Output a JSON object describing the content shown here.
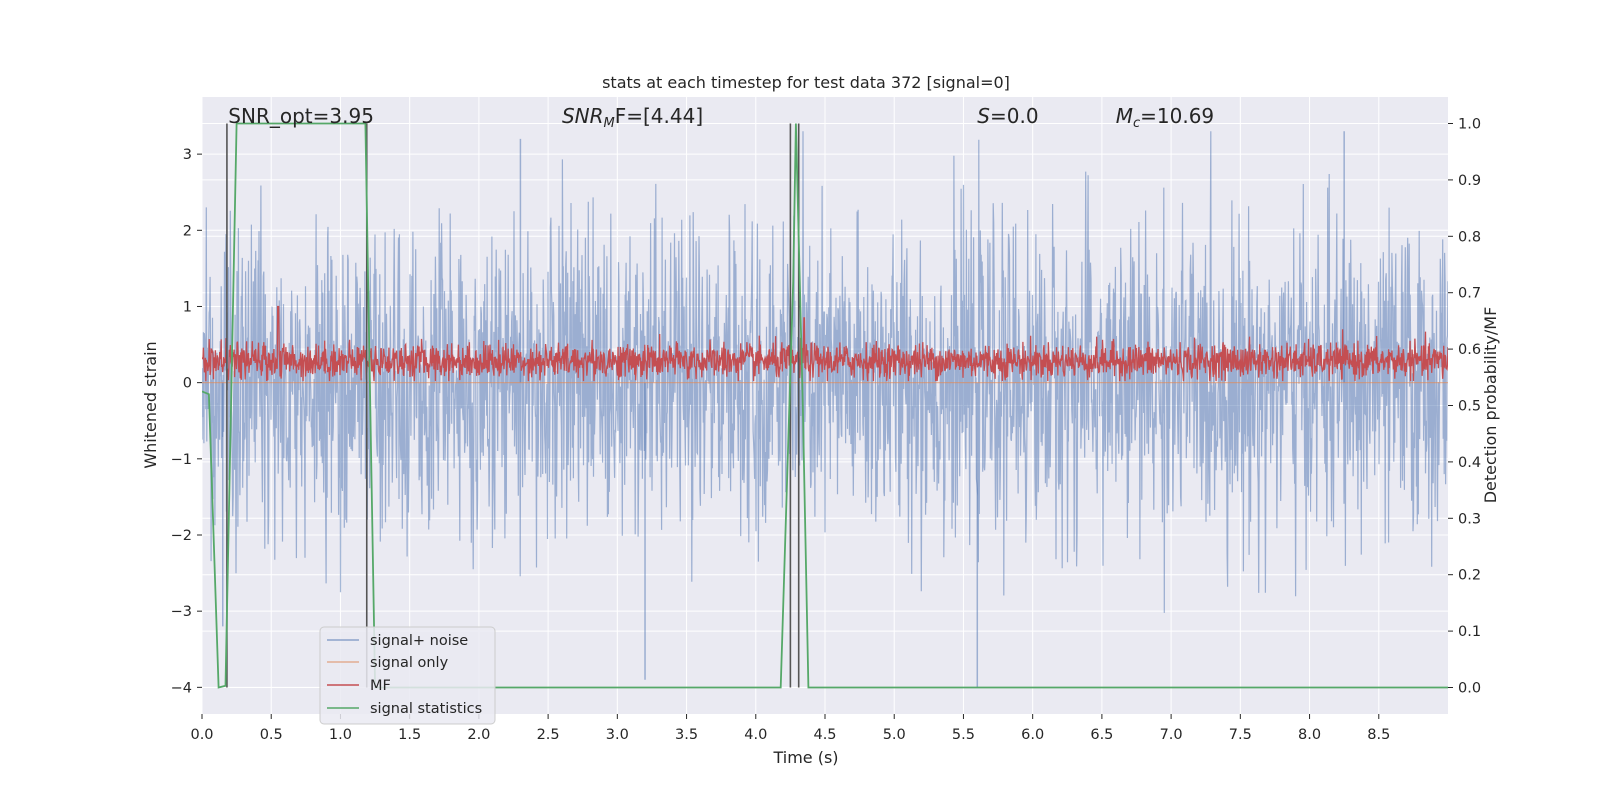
{
  "chart_data": {
    "type": "line",
    "title": "stats at each timestep for test data 372 [signal=0]",
    "xlabel": "Time (s)",
    "ylabel": "Whitened strain",
    "ylabel_right": "Detection probability/MF",
    "xlim": [
      0.0,
      9.0
    ],
    "ylim": [
      -4.35,
      3.75
    ],
    "ylim_right": [
      -0.047,
      1.047
    ],
    "x_ticks": [
      0.0,
      0.5,
      1.0,
      1.5,
      2.0,
      2.5,
      3.0,
      3.5,
      4.0,
      4.5,
      5.0,
      5.5,
      6.0,
      6.5,
      7.0,
      7.5,
      8.0,
      8.5
    ],
    "x_tick_labels": [
      "0.0",
      "0.5",
      "1.0",
      "1.5",
      "2.0",
      "2.5",
      "3.0",
      "3.5",
      "4.0",
      "4.5",
      "5.0",
      "5.5",
      "6.0",
      "6.5",
      "7.0",
      "7.5",
      "8.0",
      "8.5"
    ],
    "y_ticks": [
      3,
      2,
      1,
      0,
      -1,
      -2,
      -3,
      -4
    ],
    "y_tick_labels": [
      "3",
      "2",
      "1",
      "0",
      "−1",
      "−2",
      "−3",
      "−4"
    ],
    "y_right_ticks": [
      1.0,
      0.9,
      0.8,
      0.7,
      0.6,
      0.5,
      0.4,
      0.3,
      0.2,
      0.1,
      0.0
    ],
    "y_right_tick_labels": [
      "1.0",
      "0.9",
      "0.8",
      "0.7",
      "0.6",
      "0.5",
      "0.4",
      "0.3",
      "0.2",
      "0.1",
      "0.0"
    ],
    "grid": true,
    "legend_position": "lower-left",
    "annotations": [
      {
        "label_plain": "SNR_opt=3.95",
        "x": 0.19
      },
      {
        "label_italic": "SNR",
        "label_sub": "M",
        "label_rest": "F=[4.44]",
        "x": 2.6
      },
      {
        "label_italic": "S",
        "label_rest": "=0.0",
        "x": 5.6
      },
      {
        "label_italic": "M",
        "label_sub": "c",
        "label_rest": "=10.69",
        "x": 6.6
      }
    ],
    "vertical_markers_x": [
      0.18,
      1.19,
      4.25,
      4.31
    ],
    "series": [
      {
        "name": "signal+ noise",
        "color": "#4c72b0",
        "alpha": 0.5,
        "kind": "noise",
        "sigma": 1.0,
        "range": [
          -4.0,
          3.3
        ],
        "extremes": [
          {
            "x": 3.2,
            "y": -3.9
          },
          {
            "x": 5.6,
            "y": -4.0
          },
          {
            "x": 2.3,
            "y": 3.2
          },
          {
            "x": 8.25,
            "y": 3.3
          },
          {
            "x": 0.15,
            "y": -3.2
          }
        ]
      },
      {
        "name": "signal only",
        "color": "#dd8452",
        "alpha": 0.6,
        "kind": "flat",
        "values_y": [
          0.0
        ]
      },
      {
        "name": "MF",
        "color": "#c44e52",
        "kind": "noise-band",
        "band_y": [
          0.02,
          0.55
        ],
        "peaks": [
          {
            "x": 0.55,
            "y": 1.0
          },
          {
            "x": 4.35,
            "y": 0.85
          }
        ]
      },
      {
        "name": "signal statistics",
        "color": "#55a868",
        "axis": "right",
        "x": [
          0.0,
          0.05,
          0.12,
          0.17,
          0.25,
          0.26,
          1.18,
          1.25,
          1.3,
          4.18,
          4.27,
          4.29,
          4.34,
          4.38,
          9.0
        ],
        "y": [
          0.525,
          0.52,
          0.0,
          0.003,
          1.0,
          1.0,
          1.0,
          0.0,
          0.0,
          0.0,
          0.72,
          1.0,
          0.5,
          0.0,
          0.0
        ]
      }
    ]
  }
}
